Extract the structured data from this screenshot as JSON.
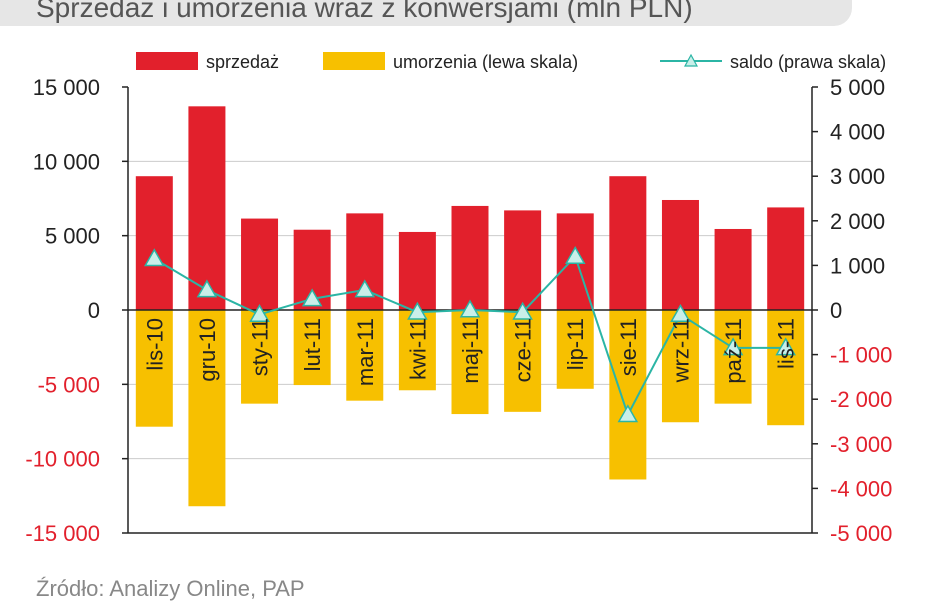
{
  "title": "Sprzedaż i umorzenia wraz z konwersjami (mln PLN)",
  "footer": "Źródło: Analizy Online, PAP",
  "colors": {
    "sales": "#e2202c",
    "redemptions": "#f7c000",
    "balance": "#2bb5a5",
    "balance_marker": "#c9efe9",
    "axis_left_pos": "#222222",
    "axis_left_neg": "#e2202c",
    "axis_right_pos": "#222222",
    "axis_right_neg": "#e2202c",
    "grid": "#cccccc"
  },
  "chart_data": {
    "type": "bar",
    "categories": [
      "lis-10",
      "gru-10",
      "sty-11",
      "lut-11",
      "mar-11",
      "kwi-11",
      "maj-11",
      "cze-11",
      "lip-11",
      "sie-11",
      "wrz-11",
      "paź-11",
      "lis-11"
    ],
    "series": [
      {
        "name": "sprzedaż",
        "type": "bar",
        "axis": "left",
        "values": [
          9000,
          13700,
          6150,
          5400,
          6500,
          5250,
          7000,
          6700,
          6500,
          9000,
          7400,
          5450,
          6900
        ]
      },
      {
        "name": "umorzenia (lewa skala)",
        "type": "bar",
        "axis": "left",
        "values": [
          -7850,
          -13200,
          -6300,
          -5050,
          -6100,
          -5400,
          -7000,
          -6850,
          -5300,
          -11400,
          -7550,
          -6300,
          -7750
        ]
      },
      {
        "name": "saldo (prawa skala)",
        "type": "line",
        "axis": "right",
        "values": [
          1150,
          450,
          -100,
          250,
          450,
          -50,
          0,
          -50,
          1200,
          -2350,
          -100,
          -850,
          -850
        ]
      }
    ],
    "yleft": {
      "min": -15000,
      "max": 15000,
      "ticks": [
        "15 000",
        "10 000",
        "5 000",
        "0",
        "-5 000",
        "-10 000",
        "-15 000"
      ]
    },
    "yright": {
      "min": -5000,
      "max": 5000,
      "ticks": [
        "5 000",
        "4 000",
        "3 000",
        "2 000",
        "1 000",
        "0",
        "-1 000",
        "-2 000",
        "-3 000",
        "-4 000",
        "-5 000"
      ]
    },
    "legend": {
      "placement": "top"
    },
    "grid": true
  }
}
